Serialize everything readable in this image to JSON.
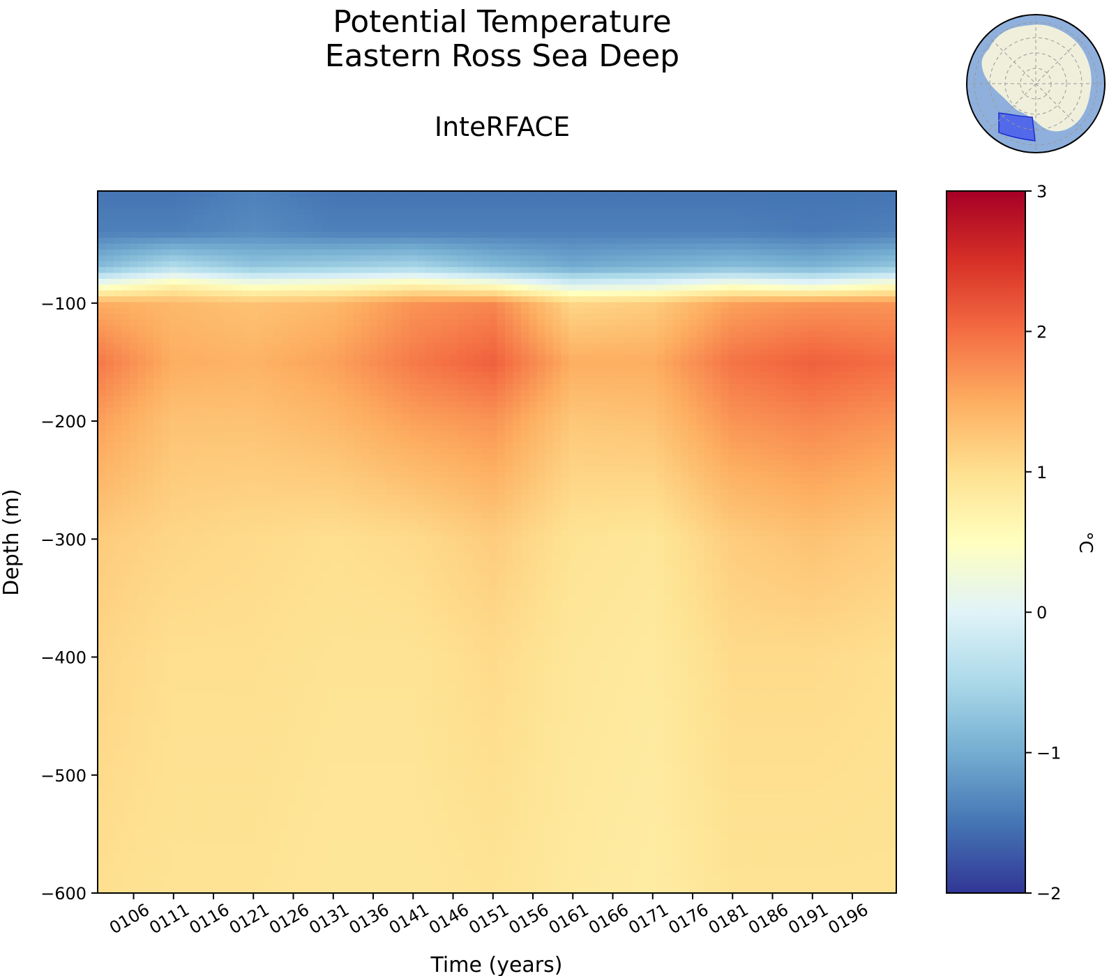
{
  "chart_data": {
    "type": "heatmap",
    "title": "Potential Temperature",
    "region": "Eastern Ross Sea Deep",
    "subtitle": "InteRFACE",
    "xlabel": "Time (years)",
    "ylabel": "Depth (m)",
    "x_ticks": [
      "0106",
      "0111",
      "0116",
      "0121",
      "0126",
      "0131",
      "0136",
      "0141",
      "0146",
      "0151",
      "0156",
      "0161",
      "0166",
      "0171",
      "0176",
      "0181",
      "0186",
      "0191",
      "0196"
    ],
    "x_range": [
      101.5,
      201.5
    ],
    "y_ticks": [
      -100,
      -200,
      -300,
      -400,
      -500,
      -600
    ],
    "y_range": [
      -600,
      -5
    ],
    "colorbar": {
      "label": "°C",
      "range": [
        -2,
        3
      ],
      "ticks": [
        3,
        2,
        1,
        0,
        -1,
        -2
      ],
      "colormap": "RdYlBu_r"
    },
    "profile_depths": [
      -5,
      -40,
      -70,
      -85,
      -100,
      -150,
      -200,
      -300,
      -400,
      -600
    ],
    "profiles": [
      {
        "year": 102,
        "temps": [
          -1.5,
          -1.4,
          -0.8,
          0.3,
          1.5,
          1.9,
          1.6,
          1.2,
          1.1,
          1.0
        ]
      },
      {
        "year": 111,
        "temps": [
          -1.5,
          -1.4,
          -0.4,
          0.7,
          1.4,
          1.5,
          1.3,
          1.1,
          1.0,
          0.95
        ]
      },
      {
        "year": 121,
        "temps": [
          -1.4,
          -1.3,
          -0.7,
          0.4,
          1.3,
          1.45,
          1.3,
          1.05,
          1.0,
          0.95
        ]
      },
      {
        "year": 131,
        "temps": [
          -1.5,
          -1.4,
          -0.6,
          0.5,
          1.4,
          1.6,
          1.4,
          1.0,
          0.95,
          0.9
        ]
      },
      {
        "year": 141,
        "temps": [
          -1.5,
          -1.4,
          -0.5,
          0.7,
          1.7,
          1.9,
          1.6,
          1.05,
          0.95,
          0.9
        ]
      },
      {
        "year": 151,
        "temps": [
          -1.5,
          -1.4,
          -0.8,
          0.5,
          1.8,
          2.1,
          1.7,
          1.2,
          1.05,
          0.95
        ]
      },
      {
        "year": 161,
        "temps": [
          -1.5,
          -1.4,
          -1.0,
          0.0,
          1.1,
          1.5,
          1.25,
          0.95,
          0.9,
          0.85
        ]
      },
      {
        "year": 171,
        "temps": [
          -1.5,
          -1.4,
          -0.9,
          0.1,
          1.2,
          1.5,
          1.3,
          0.9,
          0.85,
          0.8
        ]
      },
      {
        "year": 181,
        "temps": [
          -1.5,
          -1.4,
          -0.8,
          0.4,
          1.6,
          1.95,
          1.7,
          1.2,
          1.05,
          0.95
        ]
      },
      {
        "year": 191,
        "temps": [
          -1.5,
          -1.45,
          -0.9,
          0.2,
          1.7,
          2.1,
          1.8,
          1.3,
          1.05,
          0.95
        ]
      },
      {
        "year": 201,
        "temps": [
          -1.5,
          -1.4,
          -0.7,
          0.5,
          1.7,
          2.0,
          1.7,
          1.2,
          1.0,
          0.95
        ]
      }
    ]
  },
  "inset_map": {
    "name": "antarctica-region-map",
    "highlight": "Eastern Ross Sea Deep",
    "ocean_color": "#8fb0dc",
    "land_color": "#efefdc",
    "region_color": "#3d52ee"
  }
}
